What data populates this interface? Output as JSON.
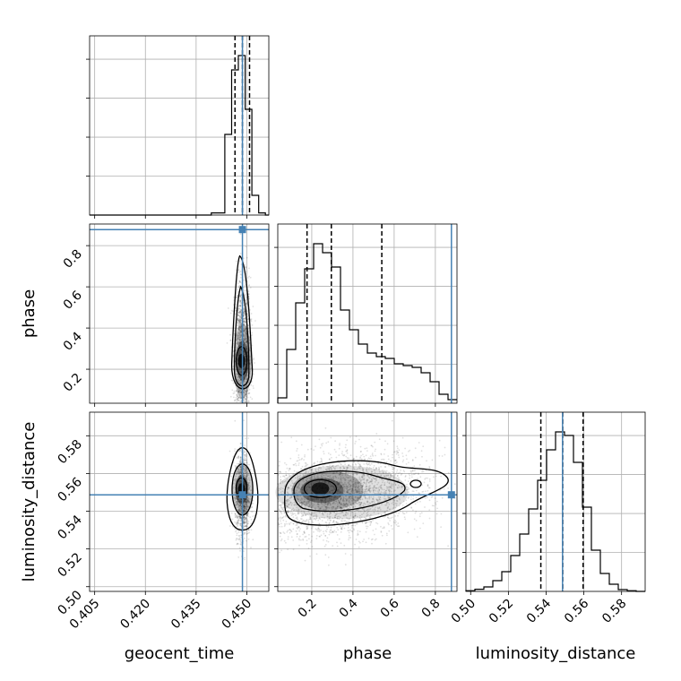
{
  "chart_data": {
    "type": "scatter",
    "subtype": "corner-plot",
    "parameters": [
      "geocent_time",
      "phase",
      "luminosity_distance"
    ],
    "axis_labels": {
      "x": [
        "geocent_time",
        "phase",
        "luminosity_distance"
      ],
      "y": [
        "",
        "phase",
        "luminosity_distance"
      ]
    },
    "ranges": {
      "geocent_time": [
        0.4035,
        0.4565
      ],
      "phase": [
        0.035,
        0.905
      ],
      "luminosity_distance": [
        0.4975,
        0.5925
      ]
    },
    "ticks": {
      "geocent_time": [
        0.405,
        0.42,
        0.435,
        0.45
      ],
      "phase": [
        0.2,
        0.4,
        0.6,
        0.8
      ],
      "luminosity_distance": [
        0.5,
        0.52,
        0.54,
        0.56,
        0.58
      ]
    },
    "tick_labels": {
      "geocent_time": [
        "0.405",
        "0.420",
        "0.435",
        "0.450"
      ],
      "phase": [
        "0.2",
        "0.4",
        "0.6",
        "0.8"
      ],
      "luminosity_distance": [
        "0.50",
        "0.52",
        "0.54",
        "0.56",
        "0.58"
      ]
    },
    "truths": {
      "geocent_time": 0.4487,
      "phase": 0.878,
      "luminosity_distance": 0.5487
    },
    "quantiles": {
      "geocent_time": [
        0.4465,
        0.4487,
        0.4508
      ],
      "phase": [
        0.177,
        0.295,
        0.54
      ],
      "luminosity_distance": [
        0.5372,
        0.5488,
        0.5596
      ]
    },
    "histograms": {
      "geocent_time": {
        "bin_edges": [
          0.4035,
          0.4055,
          0.4075,
          0.4095,
          0.4115,
          0.4135,
          0.4155,
          0.4175,
          0.4195,
          0.4215,
          0.4235,
          0.4255,
          0.4275,
          0.4295,
          0.4315,
          0.4335,
          0.4355,
          0.4375,
          0.4395,
          0.4415,
          0.4435,
          0.4455,
          0.4475,
          0.4495,
          0.4515,
          0.4535,
          0.4555,
          0.4565
        ],
        "heights": [
          0,
          0,
          0,
          0,
          0,
          0,
          0,
          0,
          0,
          0,
          0,
          0,
          0,
          0,
          0,
          0,
          0,
          0,
          0.012,
          0.012,
          0.45,
          0.81,
          0.89,
          0.59,
          0.11,
          0.012,
          0
        ]
      },
      "phase": {
        "bin_edges": [
          0.035,
          0.0785,
          0.122,
          0.1655,
          0.209,
          0.2525,
          0.296,
          0.3395,
          0.383,
          0.4265,
          0.47,
          0.5135,
          0.557,
          0.6005,
          0.644,
          0.6875,
          0.731,
          0.7745,
          0.818,
          0.8615,
          0.905
        ],
        "heights": [
          0.03,
          0.3,
          0.56,
          0.75,
          0.89,
          0.84,
          0.76,
          0.52,
          0.41,
          0.33,
          0.28,
          0.26,
          0.25,
          0.22,
          0.21,
          0.2,
          0.17,
          0.12,
          0.05,
          0.02
        ]
      },
      "luminosity_distance": {
        "bin_edges": [
          0.4975,
          0.50225,
          0.507,
          0.51175,
          0.5165,
          0.52125,
          0.526,
          0.53075,
          0.5355,
          0.54025,
          0.545,
          0.54975,
          0.5545,
          0.55925,
          0.564,
          0.56875,
          0.5735,
          0.57825,
          0.583,
          0.58775,
          0.5925
        ],
        "heights": [
          0.004,
          0.012,
          0.025,
          0.06,
          0.11,
          0.2,
          0.32,
          0.46,
          0.62,
          0.79,
          0.89,
          0.87,
          0.72,
          0.47,
          0.23,
          0.1,
          0.04,
          0.01,
          0.004,
          0
        ]
      }
    },
    "panels": [
      {
        "row": 0,
        "col": 0,
        "kind": "hist",
        "param": "geocent_time"
      },
      {
        "row": 1,
        "col": 0,
        "kind": "2d",
        "x": "geocent_time",
        "y": "phase"
      },
      {
        "row": 1,
        "col": 1,
        "kind": "hist",
        "param": "phase"
      },
      {
        "row": 2,
        "col": 0,
        "kind": "2d",
        "x": "geocent_time",
        "y": "luminosity_distance"
      },
      {
        "row": 2,
        "col": 1,
        "kind": "2d",
        "x": "phase",
        "y": "luminosity_distance"
      },
      {
        "row": 2,
        "col": 2,
        "kind": "hist",
        "param": "luminosity_distance"
      }
    ],
    "grid": true,
    "truth_color": "#4682b4",
    "line_color": "#000000"
  }
}
